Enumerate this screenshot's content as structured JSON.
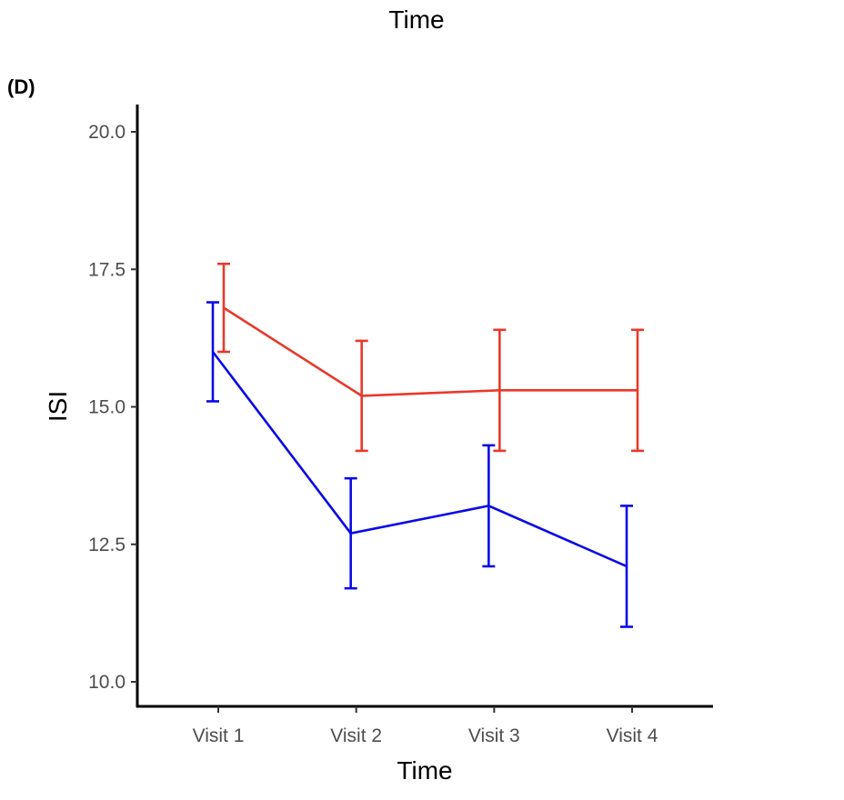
{
  "top_caption": "Time",
  "chart_data": {
    "type": "line",
    "panel_label": "(D)",
    "xlabel": "Time",
    "ylabel": "ISI",
    "categories": [
      "Visit 1",
      "Visit 2",
      "Visit 3",
      "Visit 4"
    ],
    "ylim": [
      9.6,
      20.5
    ],
    "yticks": [
      10.0,
      12.5,
      15.0,
      17.5,
      20.0
    ],
    "ytick_labels": [
      "10.0",
      "12.5",
      "15.0",
      "17.5",
      "20.0"
    ],
    "grid": false,
    "legend": "none",
    "series": [
      {
        "name": "red",
        "color": "#e8392b",
        "values": [
          16.8,
          15.2,
          15.3,
          15.3
        ],
        "lower": [
          16.0,
          14.2,
          14.2,
          14.2
        ],
        "upper": [
          17.6,
          16.2,
          16.4,
          16.4
        ]
      },
      {
        "name": "blue",
        "color": "#0a0ae6",
        "values": [
          16.0,
          12.7,
          13.2,
          12.1
        ],
        "lower": [
          15.1,
          11.7,
          12.1,
          11.0
        ],
        "upper": [
          16.9,
          13.7,
          14.3,
          13.2
        ]
      }
    ]
  }
}
